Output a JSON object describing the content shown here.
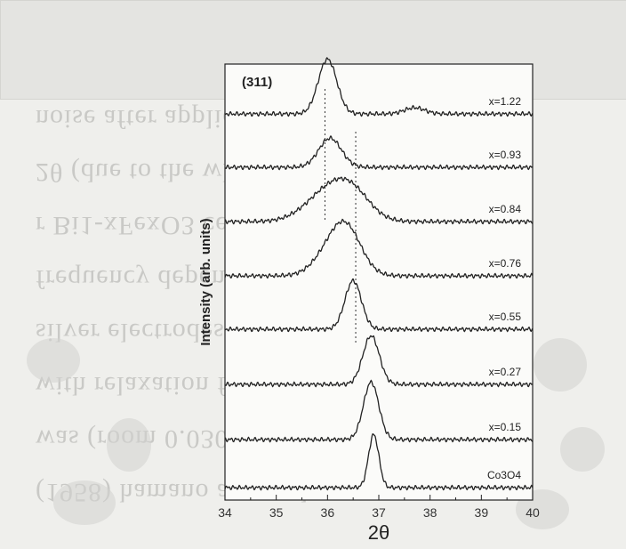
{
  "chart_data": {
    "type": "line",
    "title": "(311)",
    "xlabel": "2θ",
    "ylabel": "Intensity (arb. units)",
    "xlim": [
      34,
      40
    ],
    "x_ticks": [
      "34",
      "35",
      "36",
      "37",
      "38",
      "39",
      "40"
    ],
    "reference_lines_x": [
      35.95,
      36.55
    ],
    "series": [
      {
        "name": "x=1.22",
        "peak_x": 36.0,
        "peak_height": 0.62,
        "width": 0.18
      },
      {
        "name": "x=0.93",
        "peak_x": 36.05,
        "peak_height": 0.33,
        "width": 0.22
      },
      {
        "name": "x=0.84",
        "peak_x": 36.05,
        "peak_height": 0.35,
        "width": 0.45
      },
      {
        "name": "x=0.76",
        "peak_x": 36.35,
        "peak_height": 0.55,
        "width": 0.3
      },
      {
        "name": "x=0.55",
        "peak_x": 36.5,
        "peak_height": 0.55,
        "width": 0.16
      },
      {
        "name": "x=0.27",
        "peak_x": 36.85,
        "peak_height": 0.55,
        "width": 0.16
      },
      {
        "name": "x=0.15",
        "peak_x": 36.85,
        "peak_height": 0.65,
        "width": 0.15
      },
      {
        "name": "Co3O4",
        "peak_x": 36.9,
        "peak_height": 0.6,
        "width": 0.1
      }
    ],
    "grid": false,
    "legend": "none"
  }
}
